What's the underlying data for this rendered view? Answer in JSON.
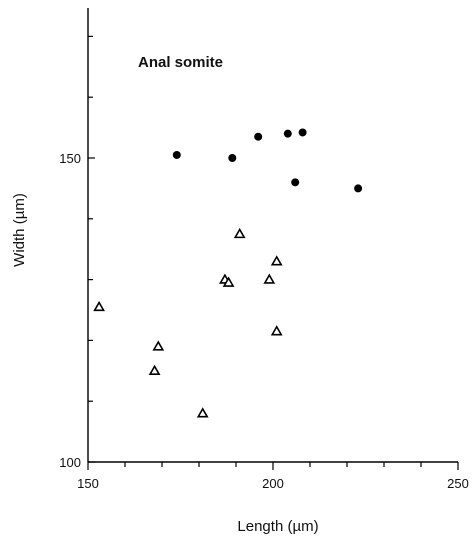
{
  "chart_data": {
    "type": "scatter",
    "title": "",
    "annotation": "Anal somite",
    "xlabel": "Length (µm)",
    "ylabel": "Width (µm)",
    "xlim": [
      150,
      250
    ],
    "ylim": [
      100,
      175
    ],
    "x_ticks_labeled": [
      150,
      200,
      250
    ],
    "y_ticks_labeled": [
      100,
      150
    ],
    "x_minor_step": 10,
    "y_minor_step": 10,
    "grid": false,
    "series": [
      {
        "marker": "circle",
        "color": "#000000",
        "points": [
          [
            174,
            150.5
          ],
          [
            189,
            150
          ],
          [
            196,
            153.5
          ],
          [
            204,
            154
          ],
          [
            208,
            154.2
          ],
          [
            206,
            146
          ],
          [
            223,
            145
          ]
        ]
      },
      {
        "marker": "triangle-open",
        "color": "#000000",
        "points": [
          [
            191,
            137.5
          ],
          [
            187,
            130
          ],
          [
            188,
            129.5
          ],
          [
            199,
            130
          ],
          [
            201,
            133
          ],
          [
            201,
            121.5
          ],
          [
            169,
            119
          ],
          [
            153,
            125.5
          ],
          [
            168,
            115
          ],
          [
            181,
            108
          ]
        ]
      }
    ]
  }
}
